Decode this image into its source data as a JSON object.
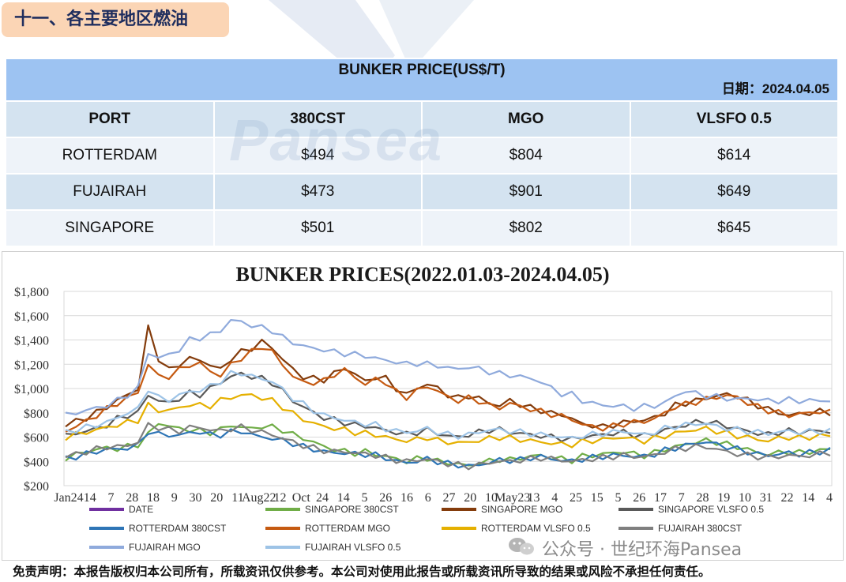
{
  "section_title": "十一、各主要地区燃油",
  "table": {
    "title": "BUNKER PRICE(US$/T)",
    "date": "日期：2024.04.05",
    "columns": [
      "PORT",
      "380CST",
      "MGO",
      "VLSFO 0.5"
    ],
    "rows": [
      [
        "ROTTERDAM",
        "$494",
        "$804",
        "$614"
      ],
      [
        "FUJAIRAH",
        "$473",
        "$901",
        "$649"
      ],
      [
        "SINGAPORE",
        "$501",
        "$802",
        "$645"
      ]
    ]
  },
  "watermark": "Pansea",
  "chart_data": {
    "type": "line",
    "title": "BUNKER PRICES(2022.01.03-2024.04.05)",
    "ylim": [
      200,
      1800
    ],
    "y_ticks": [
      "$200",
      "$400",
      "$600",
      "$800",
      "$1,000",
      "$1,200",
      "$1,400",
      "$1,600",
      "$1,800"
    ],
    "x_ticks": [
      "Jan24",
      "14",
      "7",
      "28",
      "18",
      "9",
      "30",
      "20",
      "11",
      "Aug22",
      "12",
      "Oct",
      "24",
      "14",
      "5",
      "26",
      "16",
      "6",
      "27",
      "20",
      "10",
      "May23",
      "13",
      "4",
      "25",
      "15",
      "5",
      "26",
      "17",
      "7",
      "28",
      "19",
      "10",
      "31",
      "22",
      "14",
      "4"
    ],
    "grid": true,
    "legend_position": "bottom",
    "series": [
      {
        "name": "DATE",
        "color": "#7030a0",
        "values": []
      },
      {
        "name": "SINGAPORE 380CST",
        "color": "#70ad47",
        "values": [
          430,
          455,
          480,
          500,
          510,
          505,
          520,
          540,
          620,
          720,
          690,
          670,
          660,
          650,
          640,
          660,
          700,
          680,
          670,
          690,
          680,
          660,
          620,
          590,
          560,
          520,
          500,
          480,
          470,
          480,
          460,
          440,
          420,
          400,
          420,
          430,
          400,
          390,
          380,
          360,
          390,
          400,
          420,
          410,
          430,
          440,
          450,
          430,
          420,
          410,
          440,
          450,
          460,
          470,
          480,
          460,
          450,
          470,
          500,
          520,
          540,
          560,
          570,
          560,
          540,
          520,
          500,
          470,
          460,
          470,
          480,
          470,
          480,
          490,
          501
        ]
      },
      {
        "name": "SINGAPORE MGO",
        "color": "#843c0c",
        "values": [
          700,
          730,
          760,
          800,
          850,
          900,
          950,
          1000,
          1500,
          1250,
          1150,
          1200,
          1250,
          1230,
          1200,
          1150,
          1250,
          1300,
          1330,
          1390,
          1330,
          1250,
          1150,
          1100,
          1080,
          1070,
          1130,
          1160,
          1130,
          1050,
          1100,
          1080,
          1000,
          950,
          1000,
          1040,
          1000,
          950,
          920,
          940,
          920,
          880,
          860,
          900,
          870,
          840,
          820,
          800,
          780,
          760,
          700,
          700,
          680,
          700,
          720,
          730,
          740,
          760,
          800,
          860,
          880,
          900,
          920,
          940,
          950,
          940,
          900,
          860,
          830,
          800,
          780,
          790,
          800,
          810,
          802
        ]
      },
      {
        "name": "SINGAPORE VLSFO 0.5",
        "color": "#595959",
        "values": [
          610,
          630,
          650,
          670,
          700,
          750,
          780,
          800,
          950,
          900,
          880,
          920,
          960,
          950,
          1000,
          1050,
          1100,
          1120,
          1100,
          1080,
          1050,
          980,
          900,
          850,
          800,
          760,
          740,
          720,
          700,
          690,
          680,
          650,
          640,
          620,
          640,
          660,
          630,
          610,
          600,
          620,
          640,
          660,
          660,
          640,
          630,
          620,
          610,
          600,
          590,
          580,
          600,
          610,
          620,
          630,
          640,
          620,
          610,
          630,
          660,
          680,
          700,
          720,
          730,
          710,
          690,
          670,
          650,
          630,
          620,
          640,
          650,
          640,
          650,
          650,
          645
        ]
      },
      {
        "name": "ROTTERDAM 380CST",
        "color": "#2e75b6",
        "values": [
          420,
          440,
          460,
          480,
          500,
          500,
          510,
          530,
          650,
          620,
          620,
          610,
          640,
          640,
          620,
          620,
          640,
          650,
          620,
          600,
          590,
          570,
          550,
          520,
          500,
          480,
          470,
          470,
          460,
          460,
          450,
          430,
          400,
          390,
          400,
          420,
          400,
          380,
          370,
          360,
          370,
          390,
          410,
          410,
          410,
          430,
          440,
          420,
          410,
          400,
          420,
          430,
          440,
          450,
          450,
          440,
          440,
          460,
          490,
          510,
          530,
          550,
          560,
          540,
          520,
          500,
          480,
          460,
          450,
          460,
          470,
          460,
          470,
          480,
          494
        ]
      },
      {
        "name": "ROTTERDAM MGO",
        "color": "#c55a11",
        "values": [
          650,
          690,
          730,
          780,
          830,
          880,
          920,
          970,
          1200,
          1100,
          1100,
          1150,
          1200,
          1200,
          1150,
          1100,
          1200,
          1250,
          1300,
          1350,
          1300,
          1200,
          1100,
          1050,
          1050,
          1060,
          1120,
          1150,
          1100,
          1030,
          1080,
          1050,
          970,
          930,
          980,
          1020,
          980,
          930,
          900,
          920,
          900,
          860,
          840,
          880,
          850,
          830,
          810,
          790,
          770,
          750,
          700,
          690,
          670,
          690,
          710,
          720,
          730,
          750,
          800,
          850,
          870,
          890,
          910,
          930,
          940,
          930,
          880,
          850,
          820,
          800,
          780,
          790,
          800,
          810,
          804
        ]
      },
      {
        "name": "ROTTERDAM VLSFO 0.5",
        "color": "#e5b000",
        "values": [
          600,
          620,
          640,
          660,
          680,
          700,
          720,
          740,
          860,
          820,
          820,
          840,
          870,
          860,
          860,
          900,
          930,
          940,
          950,
          920,
          900,
          850,
          790,
          750,
          710,
          690,
          670,
          660,
          640,
          630,
          620,
          600,
          580,
          570,
          580,
          600,
          570,
          560,
          550,
          560,
          570,
          590,
          600,
          590,
          580,
          570,
          560,
          550,
          540,
          540,
          560,
          570,
          580,
          590,
          600,
          580,
          570,
          590,
          610,
          630,
          650,
          660,
          670,
          650,
          630,
          610,
          600,
          580,
          570,
          590,
          600,
          590,
          600,
          610,
          614
        ]
      },
      {
        "name": "FUJAIRAH 380CST",
        "color": "#7f7f7f",
        "values": [
          440,
          460,
          480,
          500,
          520,
          520,
          530,
          560,
          700,
          680,
          660,
          650,
          680,
          680,
          660,
          650,
          670,
          680,
          660,
          640,
          620,
          590,
          560,
          530,
          510,
          490,
          480,
          480,
          470,
          460,
          450,
          430,
          410,
          400,
          410,
          420,
          400,
          380,
          370,
          360,
          370,
          390,
          400,
          400,
          410,
          420,
          430,
          420,
          410,
          400,
          410,
          420,
          430,
          440,
          450,
          440,
          440,
          450,
          480,
          500,
          510,
          520,
          520,
          500,
          480,
          460,
          450,
          440,
          430,
          440,
          450,
          440,
          450,
          460,
          473
        ]
      },
      {
        "name": "FUJAIRAH MGO",
        "color": "#8faadc",
        "values": [
          780,
          800,
          820,
          840,
          860,
          900,
          950,
          1000,
          1300,
          1250,
          1280,
          1320,
          1400,
          1420,
          1440,
          1480,
          1560,
          1550,
          1520,
          1500,
          1480,
          1420,
          1380,
          1350,
          1330,
          1320,
          1300,
          1290,
          1280,
          1270,
          1250,
          1230,
          1220,
          1200,
          1210,
          1200,
          1190,
          1170,
          1160,
          1180,
          1160,
          1140,
          1120,
          1110,
          1100,
          1080,
          1060,
          1000,
          960,
          950,
          900,
          880,
          860,
          860,
          850,
          840,
          850,
          860,
          880,
          940,
          980,
          960,
          940,
          930,
          920,
          910,
          920,
          910,
          900,
          900,
          905,
          900,
          900,
          900,
          901
        ]
      },
      {
        "name": "FUJAIRAH VLSFO 0.5",
        "color": "#9dc3e6",
        "values": [
          640,
          660,
          680,
          700,
          720,
          760,
          800,
          830,
          1000,
          920,
          910,
          940,
          980,
          980,
          1020,
          1060,
          1120,
          1130,
          1100,
          1080,
          1060,
          990,
          920,
          870,
          820,
          780,
          760,
          740,
          720,
          710,
          700,
          670,
          650,
          640,
          650,
          670,
          640,
          620,
          610,
          620,
          640,
          660,
          660,
          650,
          640,
          630,
          620,
          610,
          600,
          590,
          610,
          620,
          630,
          640,
          650,
          630,
          620,
          640,
          670,
          690,
          700,
          710,
          710,
          690,
          670,
          660,
          650,
          640,
          630,
          640,
          650,
          640,
          645,
          650,
          649
        ]
      }
    ]
  },
  "credit": "公众号 · 世纪环海Pansea",
  "disclaimer": "免责声明：本报告版权归本公司所有，所载资讯仅供参考。本公司对使用此报告或所载资讯所导致的结果或风险不承担任何责任。"
}
